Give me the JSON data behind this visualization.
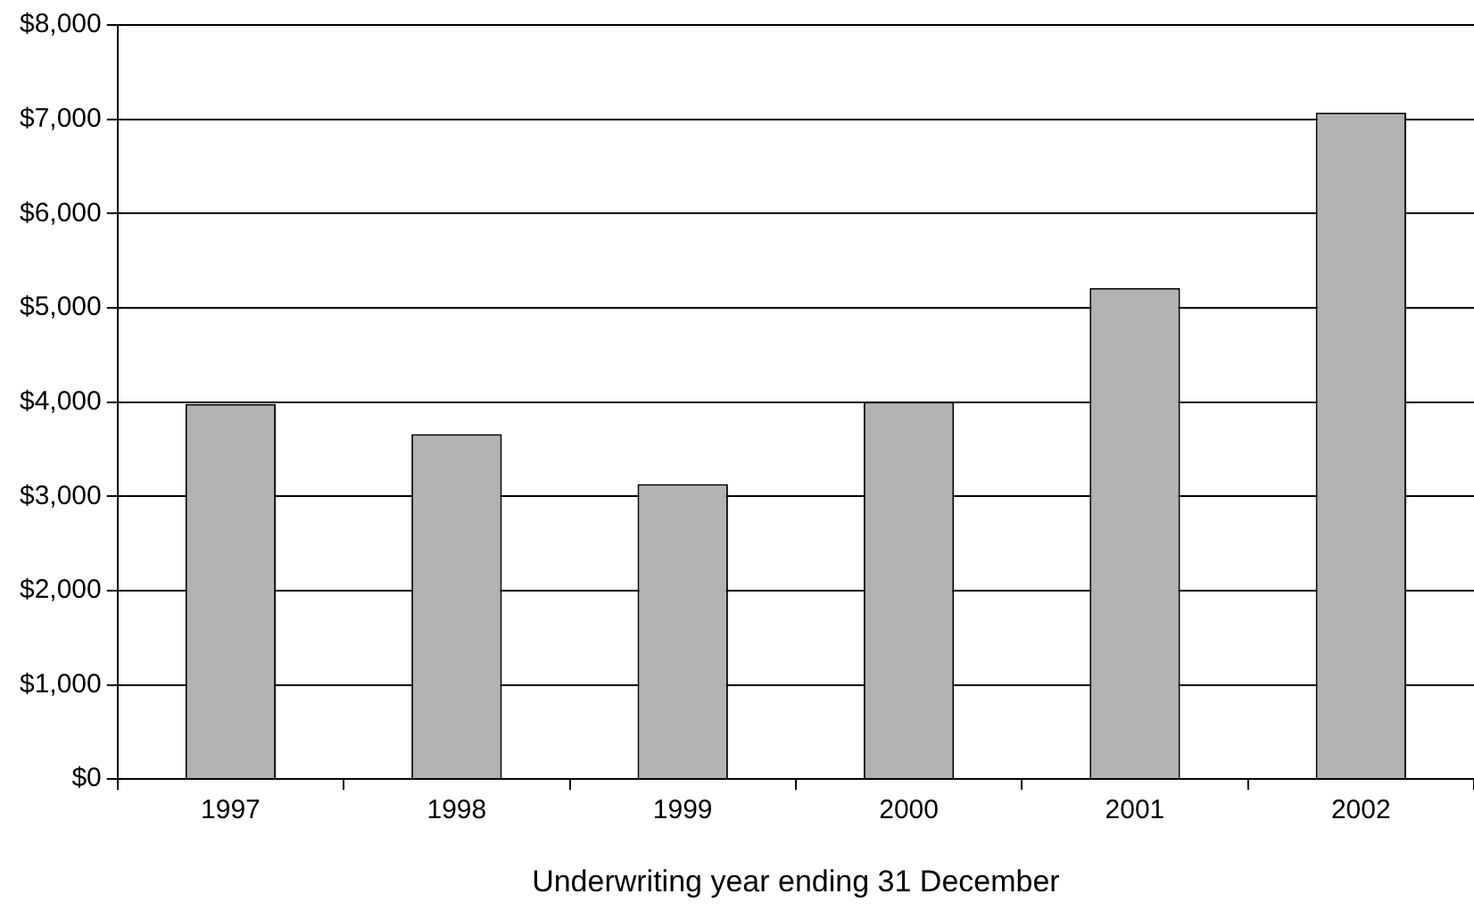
{
  "chart_data": {
    "type": "bar",
    "xlabel": "Underwriting year ending 31 December",
    "categories": [
      "1997",
      "1998",
      "1999",
      "2000",
      "2001",
      "2002"
    ],
    "values": [
      3980,
      3660,
      3130,
      4000,
      5210,
      7070
    ],
    "color": "#b2b2b2",
    "ylim": [
      0,
      8000
    ],
    "yticks": [
      {
        "value": 0,
        "label": "$0"
      },
      {
        "value": 1000,
        "label": "$1,000"
      },
      {
        "value": 2000,
        "label": "$2,000"
      },
      {
        "value": 3000,
        "label": "$3,000"
      },
      {
        "value": 4000,
        "label": "$4,000"
      },
      {
        "value": 5000,
        "label": "$5,000"
      },
      {
        "value": 6000,
        "label": "$6,000"
      },
      {
        "value": 7000,
        "label": "$7,000"
      },
      {
        "value": 8000,
        "label": "$8,000"
      }
    ],
    "grid": "y"
  }
}
